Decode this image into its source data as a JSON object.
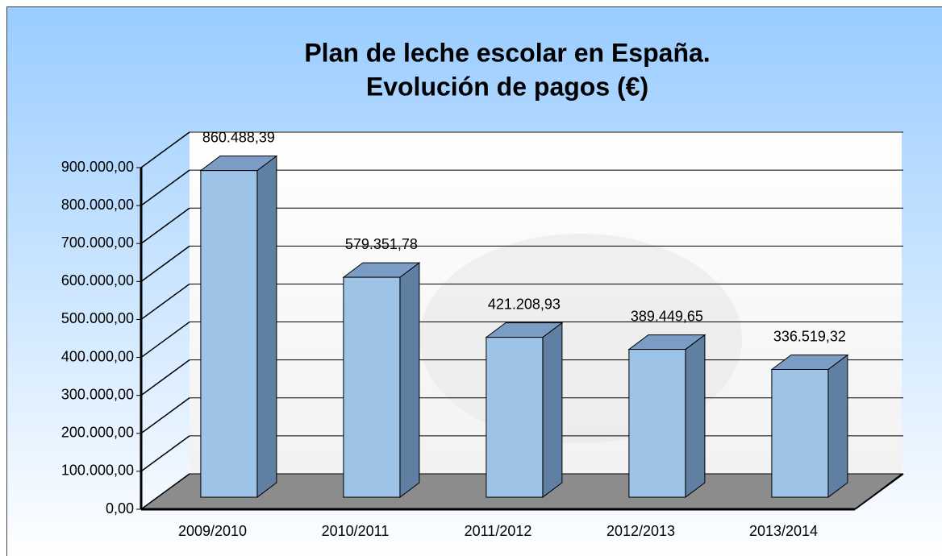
{
  "chart_data": {
    "type": "bar3d",
    "title": [
      "Plan de leche escolar en España.",
      "Evolución de pagos (€)"
    ],
    "categories": [
      "2009/2010",
      "2010/2011",
      "2011/2012",
      "2012/2013",
      "2013/2014"
    ],
    "values": [
      860488.39,
      579351.78,
      421208.93,
      389449.65,
      336519.32
    ],
    "value_labels": [
      "860.488,39",
      "579.351,78",
      "421.208,93",
      "389.449,65",
      "336.519,32"
    ],
    "color": "#9dc3e6",
    "ylim": [
      0,
      900000
    ],
    "yticks": [
      {
        "value": 0,
        "label": "0,00"
      },
      {
        "value": 100000,
        "label": "100.000,00"
      },
      {
        "value": 200000,
        "label": "200.000,00"
      },
      {
        "value": 300000,
        "label": "300.000,00"
      },
      {
        "value": 400000,
        "label": "400.000,00"
      },
      {
        "value": 500000,
        "label": "500.000,00"
      },
      {
        "value": 600000,
        "label": "600.000,00"
      },
      {
        "value": 700000,
        "label": "700.000,00"
      },
      {
        "value": 800000,
        "label": "800.000,00"
      },
      {
        "value": 900000,
        "label": "900.000,00"
      }
    ],
    "grid": true
  }
}
